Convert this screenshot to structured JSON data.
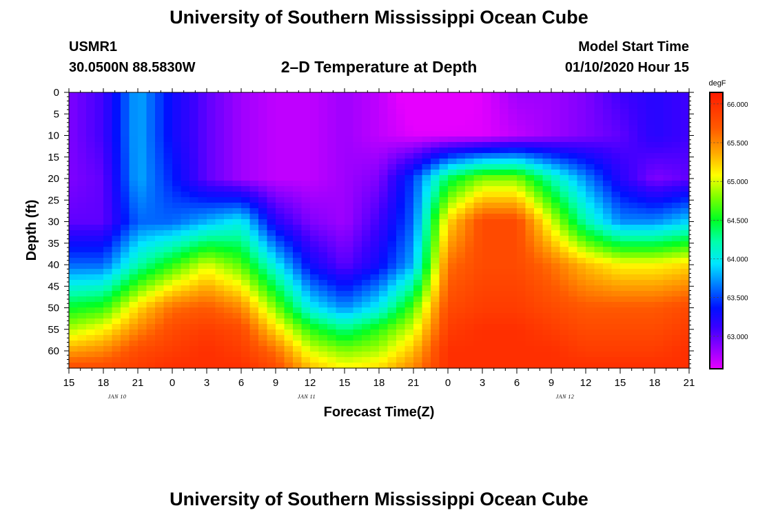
{
  "header": {
    "title": "University of Southern Mississippi Ocean Cube",
    "station_id": "USMR1",
    "station_coords": "30.0500N 88.5830W",
    "plot_title": "2–D Temperature at Depth",
    "model_start_label": "Model Start Time",
    "model_start_time": "01/10/2020 Hour 15"
  },
  "footer": {
    "title": "University of Southern Mississippi Ocean Cube"
  },
  "chart_data": {
    "type": "heatmap",
    "title": "2–D Temperature at Depth",
    "xlabel": "Forecast Time(Z)",
    "ylabel": "Depth (ft)",
    "x_hours": [
      0,
      3,
      6,
      9,
      12,
      15,
      18,
      21,
      24,
      27,
      30,
      33,
      36,
      39,
      42,
      45,
      48,
      51,
      54
    ],
    "x_tick_labels": [
      "15",
      "18",
      "21",
      "0",
      "3",
      "6",
      "9",
      "12",
      "15",
      "18",
      "21",
      "0",
      "3",
      "6",
      "9",
      "12",
      "15",
      "18",
      "21"
    ],
    "date_labels": [
      {
        "hour": 4.2,
        "text": "JAN 10"
      },
      {
        "hour": 20.7,
        "text": "JAN 11"
      },
      {
        "hour": 43.2,
        "text": "JAN 12"
      }
    ],
    "xlim": [
      0,
      54
    ],
    "ylim": [
      0,
      64
    ],
    "y_ticks": [
      0,
      5,
      10,
      15,
      20,
      25,
      30,
      35,
      40,
      45,
      50,
      55,
      60
    ],
    "depths": [
      0,
      10,
      20,
      30,
      40,
      50,
      55,
      60,
      64
    ],
    "temperature_degF": [
      [
        62.9,
        63.1,
        63.8,
        63.3,
        63.0,
        62.8,
        62.7,
        62.7,
        62.8,
        62.7,
        62.5,
        62.5,
        62.6,
        62.8,
        62.8,
        62.9,
        63.1,
        63.2,
        63.1
      ],
      [
        62.9,
        63.1,
        63.8,
        63.3,
        63.0,
        62.8,
        62.7,
        62.7,
        62.8,
        62.7,
        62.6,
        62.6,
        62.6,
        62.7,
        62.8,
        62.9,
        63.0,
        63.2,
        63.1
      ],
      [
        62.9,
        63.0,
        63.8,
        63.4,
        63.0,
        62.8,
        62.7,
        62.7,
        62.8,
        62.9,
        63.5,
        64.4,
        64.8,
        64.8,
        64.2,
        63.7,
        63.2,
        62.9,
        63.0
      ],
      [
        63.0,
        63.0,
        63.6,
        63.6,
        63.8,
        64.0,
        63.2,
        62.9,
        62.8,
        63.1,
        63.6,
        65.2,
        65.8,
        65.8,
        65.0,
        64.2,
        63.7,
        63.7,
        63.9
      ],
      [
        63.6,
        63.6,
        64.2,
        64.6,
        65.0,
        64.7,
        64.0,
        63.3,
        63.0,
        63.3,
        63.8,
        65.6,
        65.8,
        65.8,
        65.6,
        65.3,
        65.1,
        65.1,
        65.2
      ],
      [
        64.5,
        64.6,
        65.2,
        65.6,
        65.7,
        65.5,
        64.8,
        64.0,
        63.7,
        64.0,
        64.7,
        65.8,
        65.9,
        65.9,
        65.8,
        65.7,
        65.7,
        65.7,
        65.8
      ],
      [
        64.9,
        65.1,
        65.5,
        65.8,
        65.9,
        65.8,
        65.2,
        64.6,
        64.3,
        64.6,
        65.0,
        65.9,
        66.0,
        66.0,
        65.9,
        65.8,
        65.8,
        65.8,
        65.9
      ],
      [
        65.4,
        65.5,
        65.8,
        65.9,
        66.0,
        65.9,
        65.6,
        65.0,
        64.8,
        64.9,
        65.3,
        66.0,
        66.0,
        66.0,
        66.0,
        65.9,
        65.9,
        65.9,
        66.0
      ],
      [
        65.8,
        65.8,
        65.9,
        66.0,
        66.0,
        66.0,
        65.8,
        65.3,
        65.1,
        65.2,
        65.5,
        66.0,
        66.0,
        66.0,
        66.0,
        66.0,
        66.0,
        66.0,
        66.0
      ]
    ],
    "colorbar": {
      "unit": "degF",
      "min": 62.58,
      "max": 66.15,
      "ticks": [
        "66.000",
        "65.500",
        "65.000",
        "64.500",
        "64.000",
        "63.500",
        "63.000"
      ]
    },
    "grid": false,
    "legend": "right"
  }
}
